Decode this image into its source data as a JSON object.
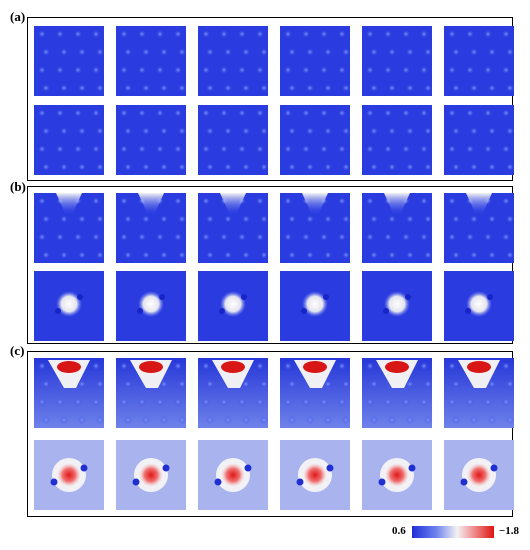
{
  "panels": [
    {
      "label": "(a)"
    },
    {
      "label": "(b)"
    },
    {
      "label": "(c)"
    }
  ],
  "colorbar": {
    "min_label": "0.6",
    "max_label": "−1.8",
    "colors": [
      "#1e2fd6",
      "#6f84ee",
      "#f2f2f2",
      "#f08f8f",
      "#dd1414"
    ]
  }
}
